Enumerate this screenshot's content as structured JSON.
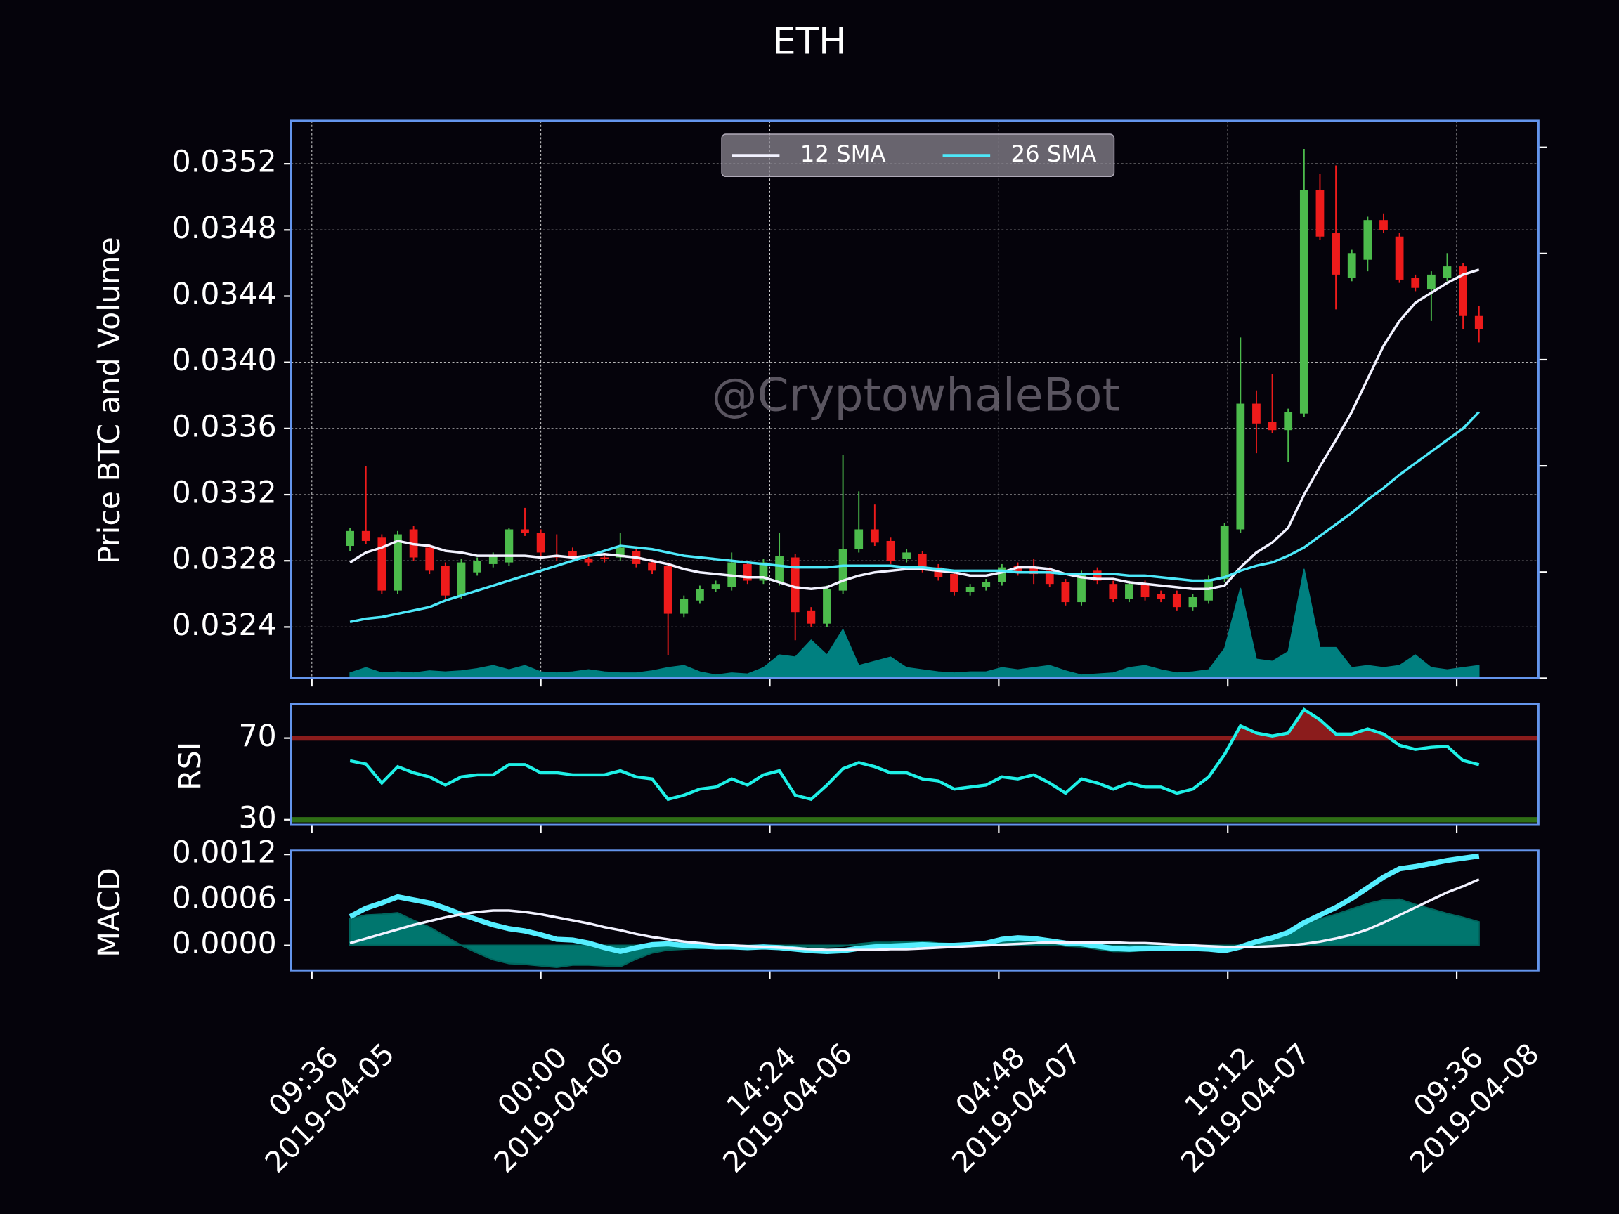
{
  "chart_data": {
    "type": "candlestick",
    "title": "ETH",
    "watermark": "@CryptowhaleBot",
    "ylabel": "Price BTC and Volume",
    "x": [
      12,
      13,
      14,
      15,
      16,
      17,
      18,
      19,
      20,
      21,
      22,
      23,
      24,
      25,
      26,
      27,
      28,
      29,
      30,
      31,
      32,
      33,
      34,
      35,
      36,
      37,
      38,
      39,
      40,
      41,
      42,
      43,
      44,
      45,
      46,
      47,
      48,
      49,
      50,
      51,
      52,
      53,
      54,
      55,
      56,
      57,
      58,
      59,
      60,
      61,
      62,
      63,
      64,
      65,
      66,
      67,
      68,
      69,
      70,
      71,
      72,
      73,
      74,
      75,
      76,
      77,
      78,
      79,
      80,
      81,
      82,
      83
    ],
    "xlim": [
      8.3,
      86.74
    ],
    "xticks": [
      {
        "value": 9.6,
        "label": "09:36\n2019-04-05"
      },
      {
        "value": 24,
        "label": "00:00\n2019-04-06"
      },
      {
        "value": 38.4,
        "label": "14:24\n2019-04-06"
      },
      {
        "value": 52.8,
        "label": "04:48\n2019-04-07"
      },
      {
        "value": 67.2,
        "label": "19:12\n2019-04-07"
      },
      {
        "value": 81.6,
        "label": "09:36\n2019-04-08"
      }
    ],
    "ylim": [
      0.03209,
      0.03546
    ],
    "yticks": [
      0.0324,
      0.0328,
      0.0332,
      0.0336,
      {
        "value": 0.034,
        "label": "0.0340"
      },
      0.0344,
      0.0348,
      0.0352
    ],
    "grid": true,
    "legend": "upper center",
    "up_color": "#4cbb4c",
    "down_color": "#ee1b1b",
    "open": [
      0.03289,
      0.03298,
      0.03294,
      0.03262,
      0.03299,
      0.03288,
      0.03277,
      0.03259,
      0.03273,
      0.03278,
      0.03279,
      0.03299,
      0.03297,
      0.03283,
      0.03286,
      0.03281,
      0.03282,
      0.03282,
      0.03286,
      0.03279,
      0.03277,
      0.03248,
      0.03256,
      0.03263,
      0.03264,
      0.03278,
      0.03268,
      0.03267,
      0.03282,
      0.0325,
      0.03242,
      0.03262,
      0.03287,
      0.03299,
      0.03292,
      0.03281,
      0.03284,
      0.03276,
      0.03272,
      0.03261,
      0.03264,
      0.03267,
      0.03277,
      0.03276,
      0.03274,
      0.03267,
      0.03255,
      0.03274,
      0.03266,
      0.03257,
      0.03266,
      0.0326,
      0.0326,
      0.03252,
      0.03256,
      0.03269,
      0.03299,
      0.03375,
      0.03364,
      0.03359,
      0.03369,
      0.03504,
      0.03478,
      0.03451,
      0.03462,
      0.03486,
      0.03476,
      0.03451,
      0.03444,
      0.03451,
      0.03458,
      0.03428
    ],
    "high": [
      0.033,
      0.03337,
      0.03296,
      0.03298,
      0.03301,
      0.0329,
      0.03279,
      0.03281,
      0.03282,
      0.03285,
      0.033,
      0.03312,
      0.03299,
      0.03296,
      0.03288,
      0.03283,
      0.03284,
      0.03297,
      0.03288,
      0.03281,
      0.03279,
      0.03259,
      0.03265,
      0.03268,
      0.03285,
      0.0328,
      0.03281,
      0.03297,
      0.03284,
      0.03252,
      0.03265,
      0.03344,
      0.03322,
      0.03314,
      0.03294,
      0.03287,
      0.03286,
      0.03278,
      0.03274,
      0.03266,
      0.03269,
      0.03278,
      0.03279,
      0.03281,
      0.03276,
      0.03269,
      0.03274,
      0.03276,
      0.03268,
      0.03268,
      0.03268,
      0.03262,
      0.03262,
      0.0326,
      0.03271,
      0.03303,
      0.03415,
      0.03383,
      0.03393,
      0.03372,
      0.03529,
      0.03514,
      0.03519,
      0.03468,
      0.03488,
      0.0349,
      0.03478,
      0.03453,
      0.03455,
      0.03466,
      0.0346,
      0.03434
    ],
    "low": [
      0.03286,
      0.0329,
      0.0326,
      0.0326,
      0.0328,
      0.03272,
      0.03257,
      0.03257,
      0.03271,
      0.03276,
      0.03277,
      0.03295,
      0.03283,
      0.0328,
      0.0328,
      0.03277,
      0.03279,
      0.0328,
      0.03276,
      0.03272,
      0.03223,
      0.03246,
      0.03254,
      0.03261,
      0.03262,
      0.03266,
      0.03266,
      0.03265,
      0.03232,
      0.0324,
      0.0324,
      0.0326,
      0.03285,
      0.03289,
      0.03278,
      0.03279,
      0.03273,
      0.03268,
      0.03259,
      0.03259,
      0.03262,
      0.03265,
      0.03271,
      0.03266,
      0.03264,
      0.03253,
      0.03253,
      0.03266,
      0.03255,
      0.03255,
      0.03256,
      0.03255,
      0.0325,
      0.0325,
      0.03254,
      0.03267,
      0.03297,
      0.03345,
      0.03357,
      0.0334,
      0.03367,
      0.03474,
      0.03432,
      0.03449,
      0.03455,
      0.03478,
      0.03448,
      0.03443,
      0.03425,
      0.03449,
      0.0342,
      0.03412
    ],
    "close": [
      0.03298,
      0.03292,
      0.03262,
      0.03296,
      0.03282,
      0.03274,
      0.03259,
      0.03279,
      0.0328,
      0.03283,
      0.03299,
      0.03297,
      0.03285,
      0.03282,
      0.03282,
      0.03279,
      0.03281,
      0.03288,
      0.03278,
      0.03274,
      0.03248,
      0.03257,
      0.03263,
      0.03266,
      0.03279,
      0.03268,
      0.03279,
      0.03283,
      0.03249,
      0.03242,
      0.03263,
      0.03287,
      0.03299,
      0.03291,
      0.0328,
      0.03285,
      0.03275,
      0.0327,
      0.03261,
      0.03264,
      0.03267,
      0.03276,
      0.03273,
      0.03272,
      0.03266,
      0.03255,
      0.03272,
      0.03268,
      0.03257,
      0.03266,
      0.03258,
      0.03257,
      0.03252,
      0.03258,
      0.03269,
      0.03301,
      0.03375,
      0.03363,
      0.03359,
      0.0337,
      0.03504,
      0.03476,
      0.03453,
      0.03466,
      0.03486,
      0.0348,
      0.0345,
      0.03445,
      0.03453,
      0.03458,
      0.03428,
      0.0342
    ],
    "volume": {
      "color": "#008080",
      "axis": "y2",
      "values": [
        0.05,
        0.1,
        0.05,
        0.06,
        0.05,
        0.07,
        0.06,
        0.07,
        0.09,
        0.12,
        0.08,
        0.12,
        0.06,
        0.05,
        0.06,
        0.08,
        0.06,
        0.05,
        0.05,
        0.07,
        0.1,
        0.12,
        0.06,
        0.03,
        0.05,
        0.04,
        0.1,
        0.22,
        0.2,
        0.36,
        0.22,
        0.46,
        0.12,
        0.16,
        0.2,
        0.1,
        0.08,
        0.06,
        0.05,
        0.06,
        0.06,
        0.1,
        0.08,
        0.1,
        0.12,
        0.07,
        0.03,
        0.04,
        0.05,
        0.1,
        0.12,
        0.08,
        0.05,
        0.06,
        0.08,
        0.28,
        0.85,
        0.18,
        0.16,
        0.25,
        1.03,
        0.29,
        0.29,
        0.1,
        0.12,
        0.1,
        0.12,
        0.22,
        0.1,
        0.08,
        0.1,
        0.12
      ]
    },
    "y2lim": [
      0,
      5.25
    ],
    "y2ticks": [
      0,
      1,
      2,
      3,
      4,
      5
    ],
    "series": [
      {
        "name": "12 SMA",
        "color": "#f2f2ff",
        "values": [
          0.03279,
          0.03285,
          0.03288,
          0.03292,
          0.0329,
          0.03289,
          0.03286,
          0.03285,
          0.03283,
          0.03283,
          0.03283,
          0.03283,
          0.03282,
          0.03283,
          0.03282,
          0.03283,
          0.03284,
          0.03283,
          0.03282,
          0.0328,
          0.03278,
          0.03275,
          0.03273,
          0.03272,
          0.03271,
          0.0327,
          0.0327,
          0.03267,
          0.03264,
          0.03263,
          0.03264,
          0.03268,
          0.03271,
          0.03273,
          0.03274,
          0.03275,
          0.03275,
          0.03274,
          0.03273,
          0.03271,
          0.03271,
          0.03273,
          0.03276,
          0.03276,
          0.03275,
          0.03272,
          0.0327,
          0.03269,
          0.03269,
          0.03267,
          0.03266,
          0.03265,
          0.03264,
          0.03263,
          0.03263,
          0.03265,
          0.03276,
          0.03285,
          0.03291,
          0.033,
          0.0332,
          0.03337,
          0.03353,
          0.0337,
          0.0339,
          0.0341,
          0.03425,
          0.03436,
          0.03442,
          0.03448,
          0.03453,
          0.03456
        ]
      },
      {
        "name": "26 SMA",
        "color": "#4de8f9",
        "values": [
          0.03243,
          0.03245,
          0.03246,
          0.03248,
          0.0325,
          0.03252,
          0.03256,
          0.03259,
          0.03262,
          0.03265,
          0.03268,
          0.03271,
          0.03274,
          0.03277,
          0.0328,
          0.03283,
          0.03286,
          0.03289,
          0.03288,
          0.03287,
          0.03285,
          0.03283,
          0.03282,
          0.03281,
          0.0328,
          0.03279,
          0.03278,
          0.03277,
          0.03276,
          0.03276,
          0.03276,
          0.03277,
          0.03277,
          0.03277,
          0.03277,
          0.03276,
          0.03276,
          0.03275,
          0.03274,
          0.03274,
          0.03274,
          0.03274,
          0.03273,
          0.03273,
          0.03273,
          0.03272,
          0.03272,
          0.03272,
          0.03272,
          0.03271,
          0.03271,
          0.0327,
          0.03269,
          0.03268,
          0.03268,
          0.0327,
          0.03274,
          0.03277,
          0.03279,
          0.03283,
          0.03288,
          0.03295,
          0.03302,
          0.03309,
          0.03317,
          0.03324,
          0.03332,
          0.03339,
          0.03346,
          0.03353,
          0.0336,
          0.0337
        ]
      }
    ],
    "rsi": {
      "type": "line",
      "ylabel": "RSI",
      "ylim": [
        27.5,
        86.7
      ],
      "yticks": [
        30,
        70
      ],
      "band_colors": [
        "#2f6e16",
        "#8b1c1c"
      ],
      "color": "#1ef0e6",
      "values": [
        58.9,
        57.3,
        48,
        56,
        53,
        51,
        47,
        51,
        52,
        52,
        57,
        57,
        53,
        53,
        52,
        52,
        52,
        54,
        51,
        50,
        40,
        42,
        45,
        46,
        50,
        47,
        52,
        54,
        42,
        40,
        47,
        55,
        58,
        56,
        53,
        53,
        50,
        49,
        45,
        46,
        47,
        51,
        50,
        52,
        48,
        43,
        50,
        48,
        45,
        48,
        46,
        46,
        43,
        45,
        51,
        62,
        76,
        72.5,
        71,
        72.5,
        84,
        79,
        72,
        72,
        74.5,
        72,
        66.5,
        64.5,
        65.5,
        66,
        59,
        57
      ]
    },
    "macd": {
      "type": "line",
      "ylabel": "MACD",
      "ylim": [
        -0.00033,
        0.00125
      ],
      "yticks": [
        {
          "value": 0,
          "label": "0.0000"
        },
        {
          "value": 0.0006,
          "label": "0.0006"
        },
        {
          "value": 0.0012,
          "label": "0.0012"
        }
      ],
      "series": [
        {
          "color": "#55eeff",
          "values": [
            0.00038,
            0.00049,
            0.00056,
            0.00064,
            0.0006,
            0.00056,
            0.00049,
            0.00041,
            0.00034,
            0.00027,
            0.00022,
            0.00019,
            0.00014,
            8e-05,
            7e-05,
            3e-05,
            -3e-05,
            -8e-05,
            -3e-05,
            1e-05,
            2e-05,
            0,
            -1e-05,
            -2e-05,
            -2e-05,
            -3e-05,
            -2e-05,
            -3e-05,
            -5e-05,
            -7e-05,
            -8e-05,
            -7e-05,
            -4e-05,
            -2e-05,
            -1e-05,
            0,
            1e-05,
            0,
            0,
            1e-05,
            3e-05,
            8e-05,
            0.0001,
            9e-05,
            6e-05,
            3e-05,
            2e-05,
            -1e-05,
            -4e-05,
            -5e-05,
            -4e-05,
            -4e-05,
            -4e-05,
            -4e-05,
            -5e-05,
            -7e-05,
            -2e-05,
            5e-05,
            0.0001,
            0.00017,
            0.0003,
            0.0004,
            0.0005,
            0.00062,
            0.00076,
            0.0009,
            0.00101,
            0.00104,
            0.00108,
            0.00112,
            0.00115,
            0.00118
          ]
        },
        {
          "color": "#f2f2ff",
          "values": [
            3e-05,
            9e-05,
            0.00015,
            0.00021,
            0.00027,
            0.00032,
            0.00037,
            0.00041,
            0.00044,
            0.00046,
            0.00046,
            0.00044,
            0.00041,
            0.00037,
            0.00033,
            0.00029,
            0.00024,
            0.0002,
            0.00015,
            0.00011,
            8e-05,
            5e-05,
            3e-05,
            1e-05,
            0,
            -1e-05,
            -2e-05,
            -3e-05,
            -4e-05,
            -5e-05,
            -6e-05,
            -6e-05,
            -6e-05,
            -6e-05,
            -5e-05,
            -5e-05,
            -4e-05,
            -3e-05,
            -2e-05,
            -1e-05,
            0,
            1e-05,
            2e-05,
            3e-05,
            4e-05,
            4e-05,
            4e-05,
            4e-05,
            4e-05,
            3e-05,
            3e-05,
            2e-05,
            1e-05,
            0,
            -1e-05,
            -2e-05,
            -2e-05,
            -2e-05,
            -1e-05,
            0,
            2e-05,
            5e-05,
            9e-05,
            0.00014,
            0.00021,
            0.0003,
            0.0004,
            0.0005,
            0.0006,
            0.0007,
            0.00078,
            0.00087
          ]
        }
      ],
      "histogram": {
        "color": "#008b80",
        "values": [
          0.00035,
          0.0004,
          0.00041,
          0.00043,
          0.00033,
          0.00024,
          0.00012,
          0,
          -0.0001,
          -0.00019,
          -0.00024,
          -0.00025,
          -0.00027,
          -0.00029,
          -0.00026,
          -0.00026,
          -0.00027,
          -0.00028,
          -0.00018,
          -0.0001,
          -6e-05,
          -5e-05,
          -4e-05,
          -3e-05,
          -2e-05,
          -2e-05,
          0,
          0,
          -1e-05,
          -2e-05,
          -2e-05,
          -1e-05,
          2e-05,
          4e-05,
          4e-05,
          5e-05,
          5e-05,
          3e-05,
          2e-05,
          2e-05,
          3e-05,
          7e-05,
          8e-05,
          6e-05,
          2e-05,
          -1e-05,
          -2e-05,
          -5e-05,
          -8e-05,
          -8e-05,
          -7e-05,
          -6e-05,
          -5e-05,
          -4e-05,
          -4e-05,
          -5e-05,
          0,
          7e-05,
          0.00011,
          0.00017,
          0.00028,
          0.00035,
          0.00041,
          0.00048,
          0.00055,
          0.0006,
          0.00061,
          0.00054,
          0.00048,
          0.00042,
          0.00037,
          0.00031
        ]
      }
    }
  }
}
